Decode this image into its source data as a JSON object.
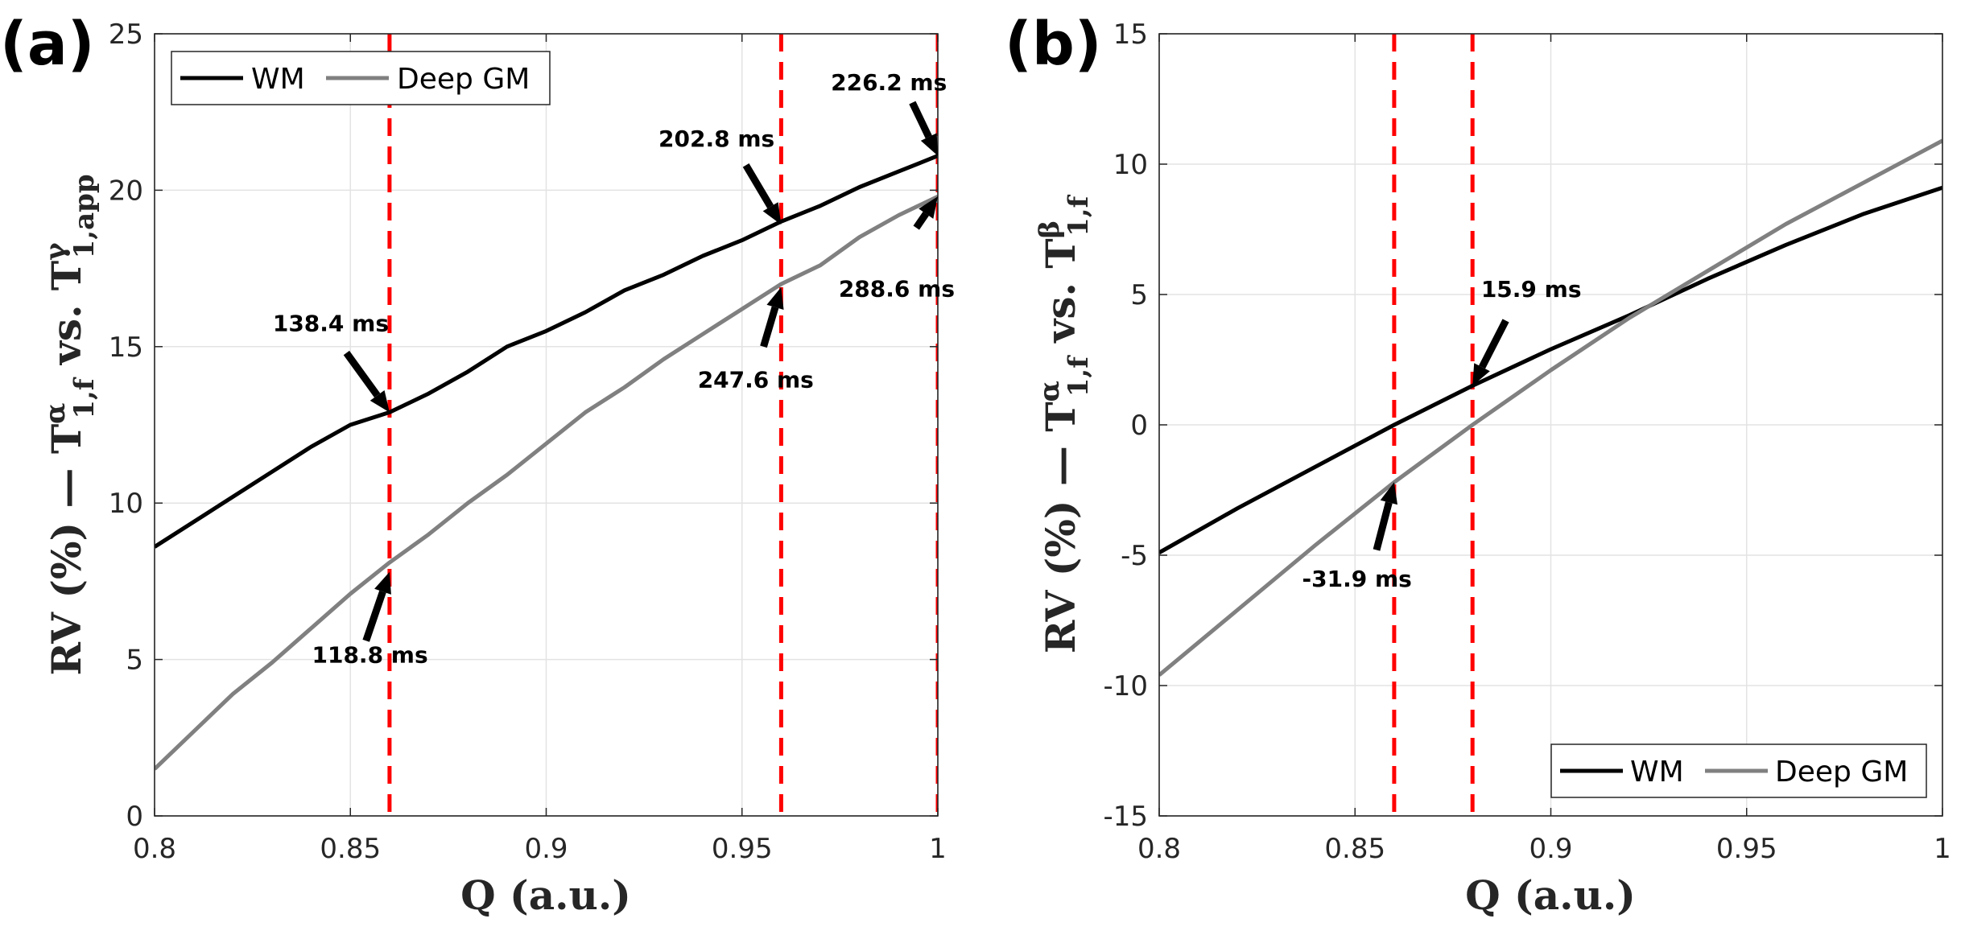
{
  "chart_data": [
    {
      "type": "line",
      "panel_label": "(a)",
      "xlabel": "Q (a.u.)",
      "ylabel": {
        "prefix": "RV (%) — ",
        "t1": "T",
        "sup1": "α",
        "sub1": "1,f",
        "mid": " vs. ",
        "t2": "T",
        "sup2": "γ",
        "sub2": "1,app"
      },
      "xlim": [
        0.8,
        1.0
      ],
      "ylim": [
        0,
        25
      ],
      "x_ticks": [
        0.8,
        0.85,
        0.9,
        0.95,
        1.0
      ],
      "x_tick_labels": [
        "0.8",
        "0.85",
        "0.9",
        "0.95",
        "1"
      ],
      "y_ticks": [
        0,
        5,
        10,
        15,
        20,
        25
      ],
      "y_tick_labels": [
        "0",
        "5",
        "10",
        "15",
        "20",
        "25"
      ],
      "grid": true,
      "legend": {
        "position": "top-left",
        "orientation": "horizontal"
      },
      "series": [
        {
          "name": "WM",
          "color": "#000000",
          "x": [
            0.8,
            0.81,
            0.82,
            0.83,
            0.84,
            0.85,
            0.86,
            0.87,
            0.88,
            0.89,
            0.9,
            0.91,
            0.92,
            0.93,
            0.94,
            0.95,
            0.96,
            0.97,
            0.98,
            0.99,
            1.0
          ],
          "y": [
            8.6,
            9.4,
            10.2,
            11.0,
            11.8,
            12.5,
            12.9,
            13.5,
            14.2,
            15.0,
            15.5,
            16.1,
            16.8,
            17.3,
            17.9,
            18.4,
            19.0,
            19.5,
            20.1,
            20.6,
            21.1
          ]
        },
        {
          "name": "Deep GM",
          "color": "#808080",
          "x": [
            0.8,
            0.81,
            0.82,
            0.83,
            0.84,
            0.85,
            0.86,
            0.87,
            0.88,
            0.89,
            0.9,
            0.91,
            0.92,
            0.93,
            0.94,
            0.95,
            0.96,
            0.97,
            0.98,
            0.99,
            1.0
          ],
          "y": [
            1.5,
            2.7,
            3.9,
            4.9,
            6.0,
            7.1,
            8.1,
            9.0,
            10.0,
            10.9,
            11.9,
            12.9,
            13.7,
            14.6,
            15.4,
            16.2,
            17.0,
            17.6,
            18.5,
            19.2,
            19.8
          ]
        }
      ],
      "vlines": [
        0.86,
        0.96,
        1.0
      ],
      "vline_color": "#ff0000",
      "annotations": [
        {
          "text": "138.4 ms",
          "point": [
            0.86,
            12.9
          ],
          "tail": [
            0.849,
            14.8
          ],
          "label": [
            0.845,
            15.5
          ],
          "anchor": "middle"
        },
        {
          "text": "118.8 ms",
          "point": [
            0.86,
            7.8
          ],
          "tail": [
            0.854,
            5.6
          ],
          "label": [
            0.855,
            4.9
          ],
          "anchor": "middle"
        },
        {
          "text": "202.8 ms",
          "point": [
            0.96,
            18.9
          ],
          "tail": [
            0.951,
            20.8
          ],
          "label": [
            0.9435,
            21.4
          ],
          "anchor": "middle"
        },
        {
          "text": "247.6 ms",
          "point": [
            0.96,
            16.9
          ],
          "tail": [
            0.9555,
            15.0
          ],
          "label": [
            0.9535,
            13.7
          ],
          "anchor": "middle"
        },
        {
          "text": "226.2 ms",
          "point": [
            1.0,
            21.1
          ],
          "tail": [
            0.9935,
            22.8
          ],
          "label": [
            0.9875,
            23.2
          ],
          "anchor": "middle"
        },
        {
          "text": "288.6 ms",
          "point": [
            1.0,
            19.8
          ],
          "tail": [
            0.9945,
            18.8
          ],
          "label": [
            0.9895,
            16.6
          ],
          "anchor": "middle"
        }
      ]
    },
    {
      "type": "line",
      "panel_label": "(b)",
      "xlabel": "Q (a.u.)",
      "ylabel": {
        "prefix": "RV (%) — ",
        "t1": "T",
        "sup1": "α",
        "sub1": "1,f",
        "mid": " vs. ",
        "t2": "T",
        "sup2": "β",
        "sub2": "1,f"
      },
      "xlim": [
        0.8,
        1.0
      ],
      "ylim": [
        -15,
        15
      ],
      "x_ticks": [
        0.8,
        0.85,
        0.9,
        0.95,
        1.0
      ],
      "x_tick_labels": [
        "0.8",
        "0.85",
        "0.9",
        "0.95",
        "1"
      ],
      "y_ticks": [
        -15,
        -10,
        -5,
        0,
        5,
        10,
        15
      ],
      "y_tick_labels": [
        "-15",
        "-10",
        "-5",
        "0",
        "5",
        "10",
        "15"
      ],
      "grid": true,
      "legend": {
        "position": "bottom-right",
        "orientation": "horizontal"
      },
      "series": [
        {
          "name": "WM",
          "color": "#000000",
          "x": [
            0.8,
            0.82,
            0.84,
            0.86,
            0.88,
            0.9,
            0.92,
            0.94,
            0.96,
            0.98,
            1.0
          ],
          "y": [
            -4.9,
            -3.2,
            -1.6,
            0.0,
            1.5,
            2.9,
            4.2,
            5.6,
            6.9,
            8.1,
            9.1
          ]
        },
        {
          "name": "Deep GM",
          "color": "#808080",
          "x": [
            0.8,
            0.82,
            0.84,
            0.86,
            0.88,
            0.9,
            0.92,
            0.94,
            0.96,
            0.98,
            1.0
          ],
          "y": [
            -9.6,
            -7.1,
            -4.6,
            -2.2,
            0.0,
            2.1,
            4.1,
            5.9,
            7.7,
            9.3,
            10.9
          ]
        }
      ],
      "vlines": [
        0.86,
        0.88
      ],
      "vline_color": "#ff0000",
      "annotations": [
        {
          "text": "15.9 ms",
          "point": [
            0.88,
            1.5
          ],
          "tail": [
            0.8885,
            4.0
          ],
          "label": [
            0.895,
            4.9
          ],
          "anchor": "middle"
        },
        {
          "text": "-31.9 ms",
          "point": [
            0.86,
            -2.2
          ],
          "tail": [
            0.8555,
            -4.8
          ],
          "label": [
            0.8505,
            -6.2
          ],
          "anchor": "middle"
        }
      ]
    }
  ]
}
